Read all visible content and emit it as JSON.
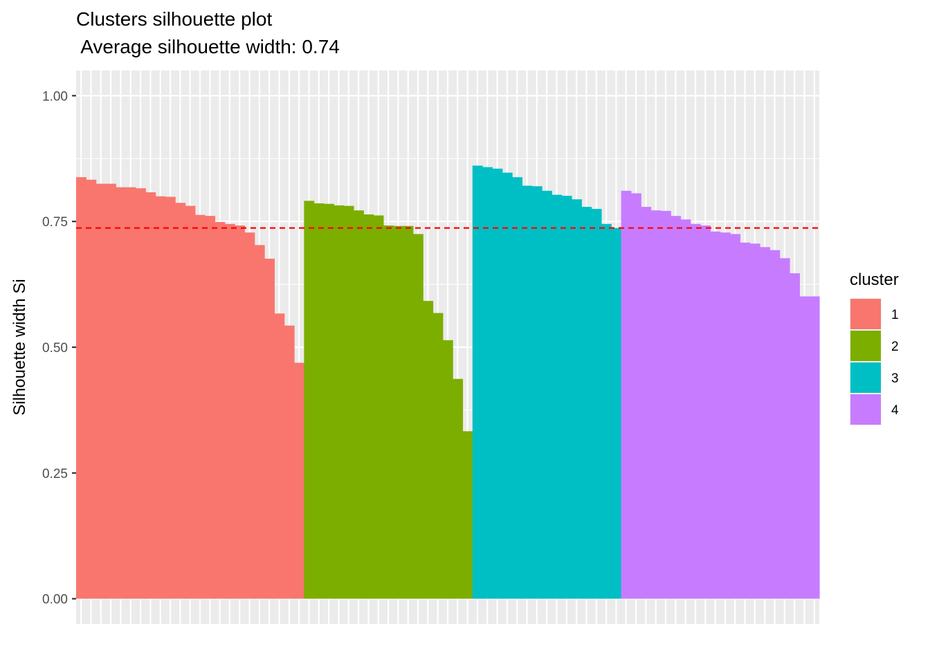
{
  "chart_data": {
    "type": "bar",
    "title": "Clusters silhouette plot",
    "subtitle": " Average silhouette width: 0.74",
    "xlabel": "",
    "ylabel": "Silhouette width Si",
    "ylim": [
      -0.05,
      1.05
    ],
    "yticks": [
      0.0,
      0.25,
      0.5,
      0.75,
      1.0
    ],
    "ytick_labels": [
      "0.00",
      "0.25",
      "0.50",
      "0.75",
      "1.00"
    ],
    "grid": true,
    "average_line": {
      "value": 0.737,
      "color": "#ff0000",
      "style": "dashed"
    },
    "legend": {
      "title": "cluster",
      "position": "right"
    },
    "series": [
      {
        "name": "1",
        "color": "#F8766D",
        "values": [
          0.838,
          0.833,
          0.825,
          0.825,
          0.818,
          0.818,
          0.816,
          0.808,
          0.8,
          0.799,
          0.787,
          0.781,
          0.763,
          0.761,
          0.749,
          0.745,
          0.742,
          0.728,
          0.703,
          0.676,
          0.567,
          0.543,
          0.469
        ]
      },
      {
        "name": "2",
        "color": "#7CAE00",
        "values": [
          0.791,
          0.786,
          0.785,
          0.782,
          0.781,
          0.772,
          0.764,
          0.762,
          0.742,
          0.741,
          0.741,
          0.725,
          0.592,
          0.568,
          0.514,
          0.437,
          0.333
        ]
      },
      {
        "name": "3",
        "color": "#00BFC4",
        "values": [
          0.861,
          0.858,
          0.855,
          0.847,
          0.838,
          0.821,
          0.82,
          0.811,
          0.803,
          0.801,
          0.794,
          0.779,
          0.775,
          0.745,
          0.737
        ]
      },
      {
        "name": "4",
        "color": "#C77CFF",
        "values": [
          0.811,
          0.806,
          0.779,
          0.772,
          0.771,
          0.761,
          0.754,
          0.745,
          0.742,
          0.73,
          0.728,
          0.725,
          0.708,
          0.706,
          0.699,
          0.693,
          0.677,
          0.647,
          0.601,
          0.601
        ]
      }
    ]
  }
}
